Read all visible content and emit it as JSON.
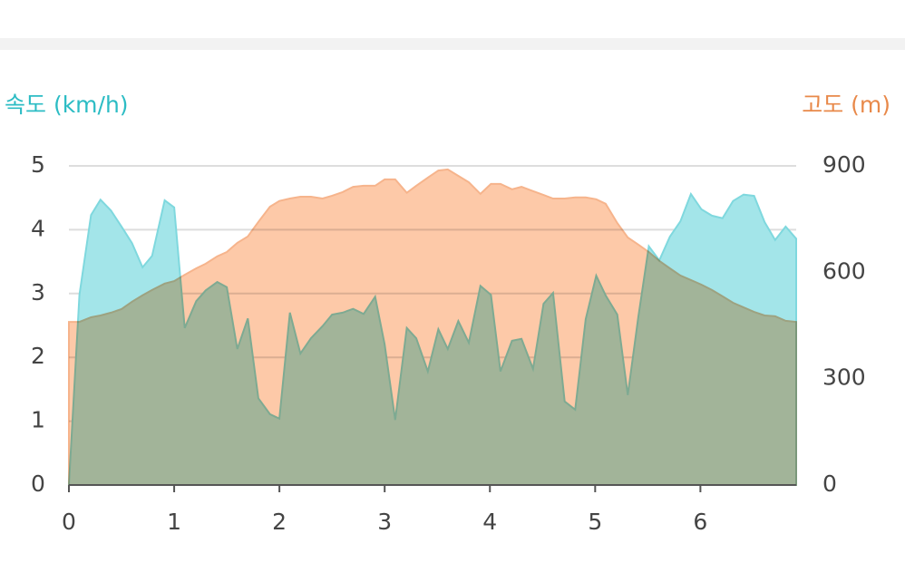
{
  "chart_data": {
    "type": "area",
    "x": [
      0,
      0.1,
      0.21,
      0.3,
      0.4,
      0.5,
      0.6,
      0.7,
      0.79,
      0.91,
      1.0,
      1.1,
      1.21,
      1.3,
      1.41,
      1.5,
      1.6,
      1.7,
      1.8,
      1.91,
      2.0,
      2.1,
      2.2,
      2.3,
      2.41,
      2.5,
      2.6,
      2.7,
      2.8,
      2.91,
      3.0,
      3.1,
      3.21,
      3.3,
      3.41,
      3.51,
      3.6,
      3.7,
      3.8,
      3.91,
      4.01,
      4.1,
      4.21,
      4.3,
      4.41,
      4.51,
      4.6,
      4.71,
      4.81,
      4.91,
      5.01,
      5.1,
      5.21,
      5.31,
      5.41,
      5.51,
      5.61,
      5.71,
      5.81,
      5.91,
      6.01,
      6.11,
      6.21,
      6.31,
      6.41,
      6.51,
      6.61,
      6.71,
      6.81,
      6.91
    ],
    "series": [
      {
        "name": "속도 (km/h)",
        "color": "#7fd8de",
        "fill": "#a3e5e9",
        "values": [
          0,
          2.98,
          4.23,
          4.47,
          4.3,
          4.05,
          3.79,
          3.41,
          3.59,
          4.46,
          4.35,
          2.46,
          2.88,
          3.05,
          3.18,
          3.1,
          2.13,
          2.61,
          1.36,
          1.11,
          1.04,
          2.7,
          2.06,
          2.3,
          2.49,
          2.67,
          2.7,
          2.76,
          2.68,
          2.95,
          2.2,
          1.02,
          2.46,
          2.3,
          1.78,
          2.44,
          2.13,
          2.57,
          2.23,
          3.12,
          2.98,
          1.78,
          2.26,
          2.29,
          1.82,
          2.84,
          3.01,
          1.31,
          1.18,
          2.6,
          3.28,
          2.97,
          2.67,
          1.41,
          2.63,
          3.74,
          3.52,
          3.89,
          4.13,
          4.56,
          4.32,
          4.22,
          4.18,
          4.45,
          4.55,
          4.53,
          4.12,
          3.84,
          4.05,
          3.86
        ]
      },
      {
        "name": "고도 (m)",
        "color": "#f6b48c",
        "fill": "#fdc9a8",
        "axis": "y2",
        "values": [
          460,
          460,
          473,
          478,
          486,
          496,
          517,
          535,
          550,
          568,
          575,
          593,
          611,
          624,
          645,
          657,
          683,
          701,
          742,
          785,
          801,
          808,
          813,
          813,
          808,
          816,
          826,
          841,
          844,
          844,
          862,
          862,
          824,
          844,
          867,
          887,
          890,
          872,
          854,
          821,
          849,
          849,
          834,
          841,
          829,
          818,
          808,
          808,
          811,
          811,
          806,
          793,
          739,
          698,
          678,
          657,
          632,
          611,
          591,
          578,
          565,
          550,
          532,
          514,
          501,
          488,
          478,
          476,
          463,
          460
        ]
      }
    ],
    "xlim": [
      0,
      6.91
    ],
    "xticks": [
      0,
      1,
      2,
      3,
      4,
      5,
      6
    ],
    "ylim": [
      0,
      5
    ],
    "yticks": [
      0,
      1,
      2,
      3,
      4,
      5
    ],
    "y2lim": [
      0,
      900
    ],
    "y2ticks": [
      0,
      300,
      600,
      900
    ],
    "grid": true
  }
}
